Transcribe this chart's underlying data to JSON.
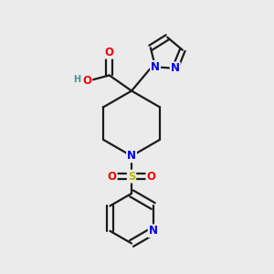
{
  "bg_color": "#ebebeb",
  "bond_color": "#1a1a1a",
  "bond_width": 1.6,
  "atom_colors": {
    "N": "#0000ee",
    "O": "#ee0000",
    "S": "#bbbb00",
    "H": "#4a9090"
  },
  "font_size": 8.5,
  "figsize": [
    3.0,
    3.0
  ],
  "dpi": 100,
  "xlim": [
    0,
    10
  ],
  "ylim": [
    0,
    10
  ]
}
